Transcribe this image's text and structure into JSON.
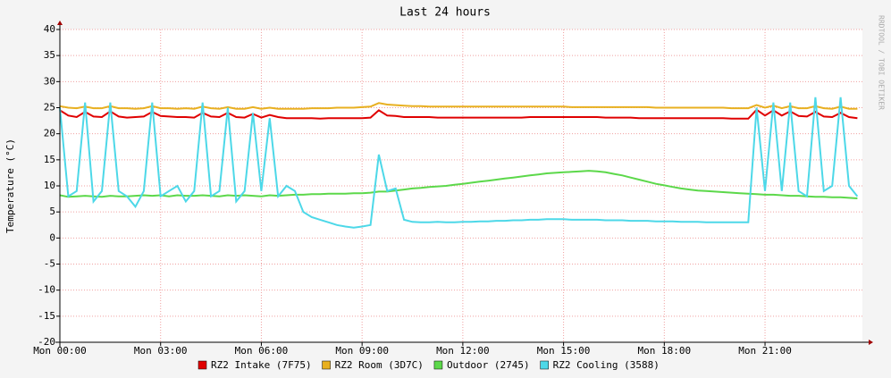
{
  "chart_data": {
    "type": "line",
    "title": "Last 24 hours",
    "y_label": "Temperature (°C)",
    "watermark": "RRDTOOL / TOBI OETIKER",
    "x": [
      0,
      0.25,
      0.5,
      0.75,
      1,
      1.25,
      1.5,
      1.75,
      2,
      2.25,
      2.5,
      2.75,
      3,
      3.25,
      3.5,
      3.75,
      4,
      4.25,
      4.5,
      4.75,
      5,
      5.25,
      5.5,
      5.75,
      6,
      6.25,
      6.5,
      6.75,
      7,
      7.25,
      7.5,
      7.75,
      8,
      8.25,
      8.5,
      8.75,
      9,
      9.25,
      9.5,
      9.75,
      10,
      10.25,
      10.5,
      10.75,
      11,
      11.25,
      11.5,
      11.75,
      12,
      12.25,
      12.5,
      12.75,
      13,
      13.25,
      13.5,
      13.75,
      14,
      14.25,
      14.5,
      14.75,
      15,
      15.25,
      15.5,
      15.75,
      16,
      16.25,
      16.5,
      16.75,
      17,
      17.25,
      17.5,
      17.75,
      18,
      18.25,
      18.5,
      18.75,
      19,
      19.25,
      19.5,
      19.75,
      20,
      20.25,
      20.5,
      20.75,
      21,
      21.25,
      21.5,
      21.75,
      22,
      22.25,
      22.5,
      22.75,
      23,
      23.25,
      23.5,
      23.75
    ],
    "xlim": [
      0,
      23.9
    ],
    "xticks": [
      {
        "value": 0,
        "label": "Mon 00:00"
      },
      {
        "value": 3,
        "label": "Mon 03:00"
      },
      {
        "value": 6,
        "label": "Mon 06:00"
      },
      {
        "value": 9,
        "label": "Mon 09:00"
      },
      {
        "value": 12,
        "label": "Mon 12:00"
      },
      {
        "value": 15,
        "label": "Mon 15:00"
      },
      {
        "value": 18,
        "label": "Mon 18:00"
      },
      {
        "value": 21,
        "label": "Mon 21:00"
      }
    ],
    "ylim": [
      -20,
      40
    ],
    "yticks": [
      -20,
      -15,
      -10,
      -5,
      0,
      5,
      10,
      15,
      20,
      25,
      30,
      35,
      40
    ],
    "grid": true,
    "legend": "bottom",
    "series": [
      {
        "name": "RZ2 Intake (7F75)",
        "color": "#e00000",
        "values": [
          24.5,
          23.5,
          23.2,
          24.2,
          23.3,
          23.2,
          24.3,
          23.3,
          23.1,
          23.2,
          23.3,
          24.2,
          23.4,
          23.3,
          23.2,
          23.2,
          23.1,
          24.0,
          23.3,
          23.2,
          24.0,
          23.2,
          23.1,
          23.8,
          23.1,
          23.6,
          23.2,
          23.0,
          23.0,
          23.0,
          23.0,
          22.9,
          23.0,
          23.0,
          23.0,
          23.0,
          23.0,
          23.1,
          24.5,
          23.5,
          23.4,
          23.2,
          23.2,
          23.2,
          23.2,
          23.1,
          23.1,
          23.1,
          23.1,
          23.1,
          23.1,
          23.1,
          23.1,
          23.1,
          23.1,
          23.1,
          23.2,
          23.2,
          23.2,
          23.2,
          23.2,
          23.2,
          23.2,
          23.2,
          23.2,
          23.1,
          23.1,
          23.1,
          23.1,
          23.0,
          23.0,
          23.0,
          23.0,
          23.0,
          23.0,
          23.0,
          23.0,
          23.0,
          23.0,
          23.0,
          22.9,
          22.9,
          22.9,
          24.6,
          23.5,
          24.5,
          23.5,
          24.3,
          23.4,
          23.3,
          24.2,
          23.3,
          23.2,
          24.0,
          23.2,
          23.0
        ]
      },
      {
        "name": "RZ2 Room (3D7C)",
        "color": "#e8b020",
        "values": [
          25.3,
          25.0,
          24.9,
          25.2,
          24.9,
          24.9,
          25.3,
          24.9,
          24.9,
          24.8,
          24.9,
          25.3,
          24.9,
          24.9,
          24.8,
          24.9,
          24.8,
          25.2,
          24.9,
          24.8,
          25.1,
          24.8,
          24.8,
          25.1,
          24.8,
          25.0,
          24.8,
          24.8,
          24.8,
          24.8,
          24.9,
          24.9,
          24.9,
          25.0,
          25.0,
          25.0,
          25.1,
          25.2,
          25.9,
          25.6,
          25.5,
          25.4,
          25.3,
          25.3,
          25.2,
          25.2,
          25.2,
          25.2,
          25.2,
          25.2,
          25.2,
          25.2,
          25.2,
          25.2,
          25.2,
          25.2,
          25.2,
          25.2,
          25.2,
          25.2,
          25.2,
          25.1,
          25.1,
          25.1,
          25.1,
          25.1,
          25.1,
          25.1,
          25.1,
          25.1,
          25.1,
          25.0,
          25.0,
          25.0,
          25.0,
          25.0,
          25.0,
          25.0,
          25.0,
          25.0,
          24.9,
          24.9,
          24.9,
          25.5,
          25.0,
          25.4,
          24.9,
          25.3,
          24.9,
          24.9,
          25.3,
          24.9,
          24.8,
          25.2,
          24.8,
          24.8
        ]
      },
      {
        "name": "Outdoor (2745)",
        "color": "#5cd84a",
        "values": [
          8.2,
          7.9,
          8.0,
          8.1,
          8.0,
          7.9,
          8.1,
          8.0,
          8.0,
          8.1,
          8.2,
          8.1,
          8.2,
          8.0,
          8.2,
          8.1,
          8.1,
          8.2,
          8.1,
          8.0,
          8.2,
          8.1,
          8.2,
          8.1,
          8.0,
          8.2,
          8.1,
          8.2,
          8.3,
          8.3,
          8.4,
          8.4,
          8.5,
          8.5,
          8.5,
          8.6,
          8.6,
          8.7,
          8.9,
          8.9,
          9.1,
          9.3,
          9.5,
          9.6,
          9.8,
          9.9,
          10.0,
          10.2,
          10.4,
          10.6,
          10.8,
          11.0,
          11.2,
          11.4,
          11.6,
          11.8,
          12.0,
          12.2,
          12.4,
          12.5,
          12.6,
          12.7,
          12.8,
          12.9,
          12.8,
          12.6,
          12.3,
          12.0,
          11.6,
          11.2,
          10.8,
          10.4,
          10.1,
          9.8,
          9.5,
          9.3,
          9.1,
          9.0,
          8.9,
          8.8,
          8.7,
          8.6,
          8.5,
          8.4,
          8.3,
          8.3,
          8.2,
          8.1,
          8.1,
          8.0,
          7.9,
          7.9,
          7.8,
          7.8,
          7.7,
          7.6
        ]
      },
      {
        "name": "RZ2 Cooling (3588)",
        "color": "#4dd8e8",
        "values": [
          25,
          8,
          9,
          26,
          7,
          9,
          26,
          9,
          8,
          6,
          9,
          26,
          8,
          9,
          10,
          7,
          9,
          26,
          8,
          9,
          25,
          7,
          9,
          24,
          9,
          23,
          8,
          10,
          9,
          5,
          4,
          3.5,
          3,
          2.5,
          2.2,
          2,
          2.2,
          2.5,
          16,
          9,
          9.5,
          3.5,
          3.1,
          3.0,
          3.0,
          3.1,
          3.0,
          3.0,
          3.1,
          3.1,
          3.2,
          3.2,
          3.3,
          3.3,
          3.4,
          3.4,
          3.5,
          3.5,
          3.6,
          3.6,
          3.6,
          3.5,
          3.5,
          3.5,
          3.5,
          3.4,
          3.4,
          3.4,
          3.3,
          3.3,
          3.3,
          3.2,
          3.2,
          3.2,
          3.1,
          3.1,
          3.1,
          3.0,
          3.0,
          3.0,
          3.0,
          3.0,
          3.0,
          25,
          9,
          26,
          9,
          26,
          9,
          8,
          27,
          9,
          10,
          27,
          10,
          8
        ]
      }
    ]
  }
}
